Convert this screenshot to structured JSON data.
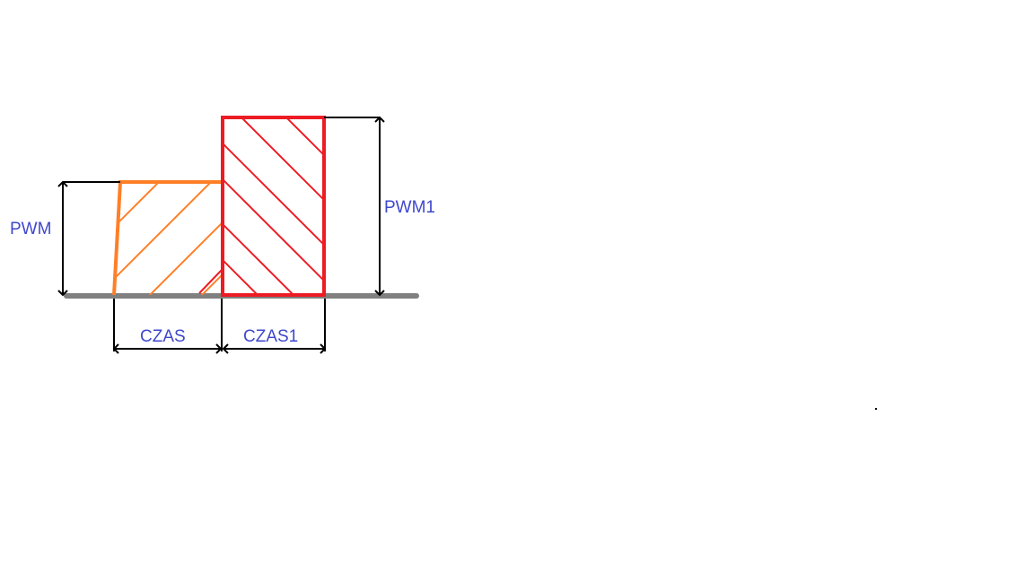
{
  "colors": {
    "background": "#ffffff",
    "baseline": "#808080",
    "dimension": "#000000",
    "label": "#3f48cc",
    "block_low": "#ff7f27",
    "block_high": "#ed1c24"
  },
  "labels": {
    "pwm": "PWM",
    "pwm1": "PWM1",
    "czas": "CZAS",
    "czas1": "CZAS1"
  }
}
